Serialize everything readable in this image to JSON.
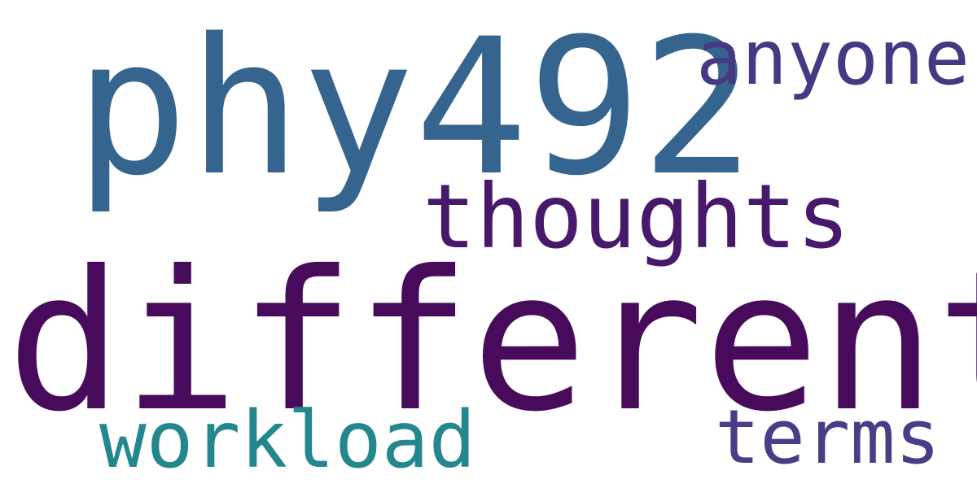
{
  "canvas": {
    "background": "#ffffff"
  },
  "words": {
    "phy492": {
      "text": "phy492",
      "color": "#35658e"
    },
    "different": {
      "text": "different",
      "color": "#480b5c"
    },
    "thoughts": {
      "text": "thoughts",
      "color": "#48186a"
    },
    "anyone": {
      "text": "anyone",
      "color": "#453984"
    },
    "workload": {
      "text": "workload",
      "color": "#24878e"
    },
    "terms": {
      "text": "terms",
      "color": "#463e86"
    }
  }
}
